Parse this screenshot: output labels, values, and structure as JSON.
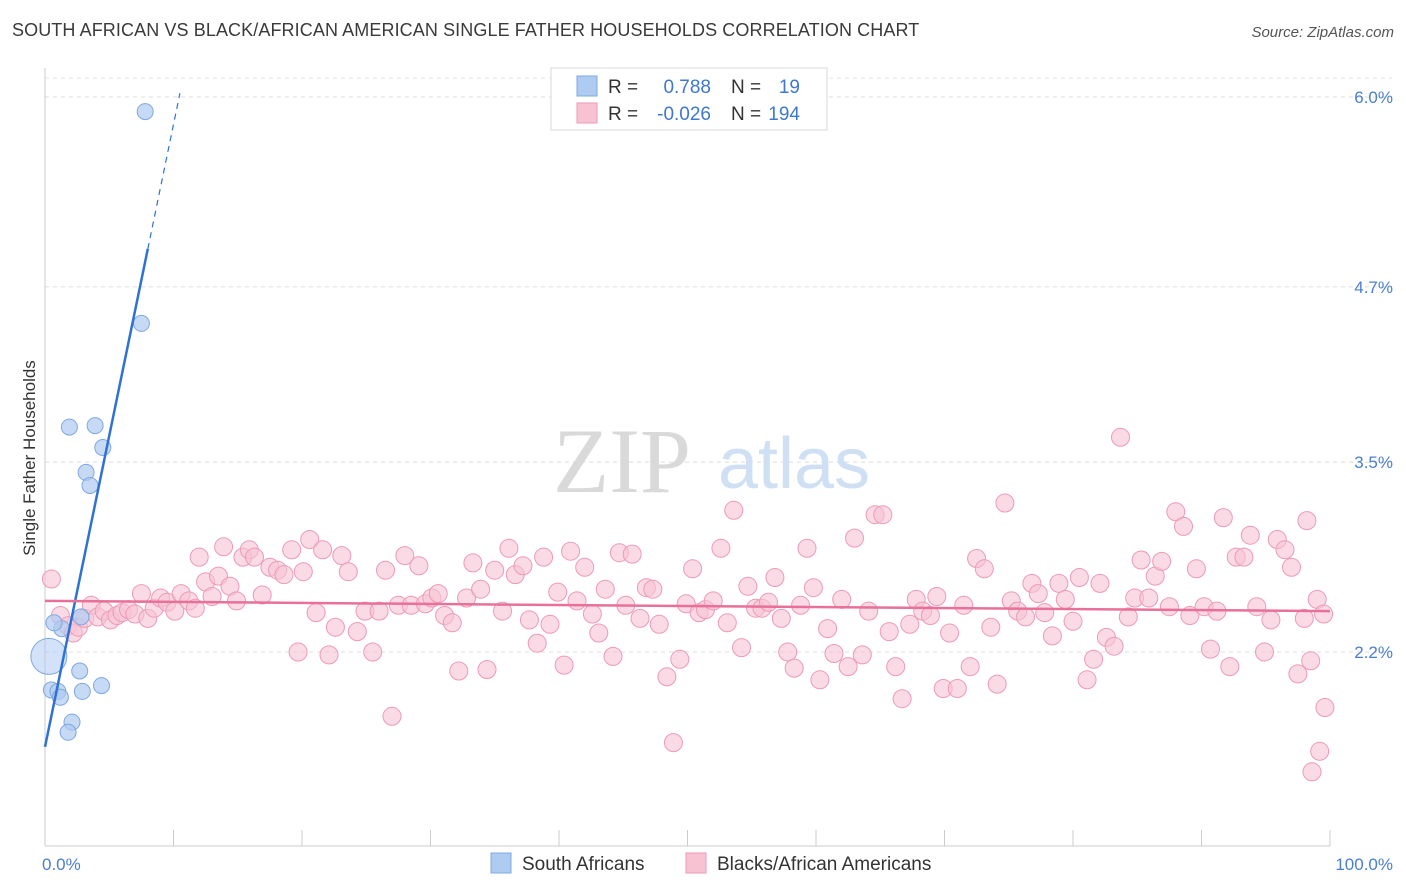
{
  "title": "SOUTH AFRICAN VS BLACK/AFRICAN AMERICAN SINGLE FATHER HOUSEHOLDS CORRELATION CHART",
  "source": "Source: ZipAtlas.com",
  "watermark": {
    "zip": "ZIP",
    "atlas": "atlas"
  },
  "colors": {
    "blue_fill": "#aecbf2",
    "blue_stroke": "#7fa8e0",
    "blue_line": "#2f72d4",
    "pink_fill": "#f7c3d3",
    "pink_stroke": "#ee9ab4",
    "pink_line": "#e8709a",
    "tick_text": "#4a7fcf",
    "grid": "#dddddd"
  },
  "legend": {
    "r_label": "R =",
    "n_label": "N =",
    "series1": {
      "r": "0.788",
      "n": "19"
    },
    "series2": {
      "r": "-0.026",
      "n": "194"
    }
  },
  "chart_data": {
    "type": "scatter",
    "title": "SOUTH AFRICAN VS BLACK/AFRICAN AMERICAN SINGLE FATHER HOUSEHOLDS CORRELATION CHART",
    "xlabel": "",
    "ylabel": "Single Father Households",
    "xlim": [
      0,
      100
    ],
    "ylim": [
      1.0,
      6.2
    ],
    "x_tick_labels": [
      "0.0%",
      "100.0%"
    ],
    "y_ticks": [
      2.2,
      3.5,
      4.7,
      6.0
    ],
    "y_tick_labels": [
      "2.2%",
      "3.5%",
      "4.7%",
      "6.0%"
    ],
    "grid": true,
    "legend_position": "top-center",
    "series": [
      {
        "name": "South Africans",
        "color": "#aecbf2",
        "r": 0.788,
        "n": 19,
        "trend": {
          "x0": 0.0,
          "y0": 1.55,
          "x1": 8.0,
          "y1": 4.96,
          "dashed_to_x": 10.5
        },
        "points": [
          [
            7.8,
            5.9
          ],
          [
            7.5,
            4.45
          ],
          [
            1.9,
            3.74
          ],
          [
            3.9,
            3.75
          ],
          [
            4.5,
            3.6
          ],
          [
            3.2,
            3.43
          ],
          [
            3.5,
            3.34
          ],
          [
            0.3,
            2.17
          ],
          [
            2.7,
            2.07
          ],
          [
            0.5,
            1.94
          ],
          [
            1.0,
            1.93
          ],
          [
            1.2,
            1.89
          ],
          [
            2.9,
            1.93
          ],
          [
            4.4,
            1.97
          ],
          [
            2.1,
            1.72
          ],
          [
            1.8,
            1.65
          ],
          [
            1.3,
            2.36
          ],
          [
            0.7,
            2.4
          ],
          [
            2.8,
            2.44
          ]
        ]
      },
      {
        "name": "Blacks/African Americans",
        "color": "#f7c3d3",
        "r": -0.026,
        "n": 194,
        "trend": {
          "x0": 0.0,
          "y0": 2.55,
          "x1": 100.0,
          "y1": 2.48
        },
        "points": [
          [
            0.5,
            2.7
          ],
          [
            1.2,
            2.45
          ],
          [
            1.8,
            2.38
          ],
          [
            2.2,
            2.33
          ],
          [
            2.6,
            2.37
          ],
          [
            3.1,
            2.43
          ],
          [
            3.6,
            2.52
          ],
          [
            4.1,
            2.44
          ],
          [
            4.6,
            2.48
          ],
          [
            5.1,
            2.42
          ],
          [
            5.6,
            2.45
          ],
          [
            6.0,
            2.47
          ],
          [
            6.5,
            2.49
          ],
          [
            7.0,
            2.46
          ],
          [
            7.5,
            2.6
          ],
          [
            8.0,
            2.43
          ],
          [
            8.5,
            2.5
          ],
          [
            9.0,
            2.57
          ],
          [
            9.5,
            2.54
          ],
          [
            10.1,
            2.48
          ],
          [
            10.6,
            2.6
          ],
          [
            11.2,
            2.55
          ],
          [
            11.7,
            2.5
          ],
          [
            12.0,
            2.85
          ],
          [
            12.5,
            2.68
          ],
          [
            13.0,
            2.58
          ],
          [
            13.5,
            2.72
          ],
          [
            13.9,
            2.92
          ],
          [
            14.4,
            2.65
          ],
          [
            14.9,
            2.55
          ],
          [
            15.4,
            2.85
          ],
          [
            15.9,
            2.9
          ],
          [
            16.3,
            2.85
          ],
          [
            16.9,
            2.59
          ],
          [
            17.5,
            2.78
          ],
          [
            18.1,
            2.76
          ],
          [
            18.6,
            2.73
          ],
          [
            19.2,
            2.9
          ],
          [
            19.7,
            2.2
          ],
          [
            20.1,
            2.75
          ],
          [
            20.6,
            2.97
          ],
          [
            21.1,
            2.47
          ],
          [
            21.6,
            2.9
          ],
          [
            22.1,
            2.18
          ],
          [
            22.6,
            2.37
          ],
          [
            23.1,
            2.86
          ],
          [
            23.6,
            2.75
          ],
          [
            24.3,
            2.34
          ],
          [
            24.9,
            2.48
          ],
          [
            25.5,
            2.2
          ],
          [
            26.0,
            2.48
          ],
          [
            26.5,
            2.76
          ],
          [
            27.0,
            1.76
          ],
          [
            27.5,
            2.52
          ],
          [
            28.0,
            2.86
          ],
          [
            28.5,
            2.52
          ],
          [
            29.1,
            2.79
          ],
          [
            29.6,
            2.53
          ],
          [
            30.1,
            2.57
          ],
          [
            30.6,
            2.6
          ],
          [
            31.1,
            2.45
          ],
          [
            31.7,
            2.4
          ],
          [
            32.2,
            2.07
          ],
          [
            32.8,
            2.57
          ],
          [
            33.3,
            2.81
          ],
          [
            33.9,
            2.63
          ],
          [
            34.4,
            2.08
          ],
          [
            35.0,
            2.76
          ],
          [
            35.6,
            2.48
          ],
          [
            36.1,
            2.91
          ],
          [
            36.6,
            2.73
          ],
          [
            37.2,
            2.79
          ],
          [
            37.7,
            2.42
          ],
          [
            38.3,
            2.26
          ],
          [
            38.8,
            2.85
          ],
          [
            39.3,
            2.39
          ],
          [
            39.9,
            2.61
          ],
          [
            40.4,
            2.11
          ],
          [
            40.9,
            2.89
          ],
          [
            41.4,
            2.55
          ],
          [
            42.0,
            2.78
          ],
          [
            42.6,
            2.46
          ],
          [
            43.1,
            2.33
          ],
          [
            43.6,
            2.63
          ],
          [
            44.2,
            2.17
          ],
          [
            44.7,
            2.88
          ],
          [
            45.2,
            2.52
          ],
          [
            45.7,
            2.87
          ],
          [
            46.3,
            2.43
          ],
          [
            46.8,
            2.64
          ],
          [
            47.3,
            2.63
          ],
          [
            47.8,
            2.39
          ],
          [
            48.4,
            2.03
          ],
          [
            48.9,
            1.58
          ],
          [
            49.4,
            2.15
          ],
          [
            49.9,
            2.53
          ],
          [
            50.4,
            2.77
          ],
          [
            50.9,
            2.47
          ],
          [
            51.4,
            2.49
          ],
          [
            52.0,
            2.55
          ],
          [
            52.6,
            2.91
          ],
          [
            53.1,
            2.4
          ],
          [
            53.6,
            3.17
          ],
          [
            54.2,
            2.23
          ],
          [
            54.7,
            2.65
          ],
          [
            55.3,
            2.5
          ],
          [
            55.8,
            2.5
          ],
          [
            56.3,
            2.54
          ],
          [
            56.8,
            2.71
          ],
          [
            57.3,
            2.43
          ],
          [
            57.8,
            2.2
          ],
          [
            58.3,
            2.09
          ],
          [
            58.8,
            2.52
          ],
          [
            59.3,
            2.91
          ],
          [
            59.8,
            2.64
          ],
          [
            60.3,
            2.01
          ],
          [
            60.9,
            2.36
          ],
          [
            61.4,
            2.19
          ],
          [
            62.0,
            2.56
          ],
          [
            62.5,
            2.1
          ],
          [
            63.0,
            2.98
          ],
          [
            63.6,
            2.18
          ],
          [
            64.1,
            2.48
          ],
          [
            64.6,
            3.14
          ],
          [
            65.2,
            3.14
          ],
          [
            65.7,
            2.34
          ],
          [
            66.2,
            2.1
          ],
          [
            66.7,
            1.88
          ],
          [
            67.3,
            2.39
          ],
          [
            67.8,
            2.56
          ],
          [
            68.3,
            2.48
          ],
          [
            68.9,
            2.45
          ],
          [
            69.4,
            2.58
          ],
          [
            69.9,
            1.95
          ],
          [
            70.4,
            2.33
          ],
          [
            71.0,
            1.95
          ],
          [
            71.5,
            2.52
          ],
          [
            72.0,
            2.1
          ],
          [
            72.5,
            2.84
          ],
          [
            73.1,
            2.77
          ],
          [
            73.6,
            2.37
          ],
          [
            74.1,
            1.98
          ],
          [
            74.7,
            3.22
          ],
          [
            75.2,
            2.55
          ],
          [
            75.7,
            2.48
          ],
          [
            76.3,
            2.44
          ],
          [
            76.8,
            2.67
          ],
          [
            77.3,
            2.6
          ],
          [
            77.8,
            2.47
          ],
          [
            78.4,
            2.31
          ],
          [
            78.9,
            2.67
          ],
          [
            79.4,
            2.56
          ],
          [
            80.0,
            2.41
          ],
          [
            80.5,
            2.71
          ],
          [
            81.1,
            2.01
          ],
          [
            81.6,
            2.15
          ],
          [
            82.1,
            2.67
          ],
          [
            82.6,
            2.3
          ],
          [
            83.2,
            2.24
          ],
          [
            83.7,
            3.67
          ],
          [
            84.3,
            2.44
          ],
          [
            84.8,
            2.57
          ],
          [
            85.3,
            2.83
          ],
          [
            85.9,
            2.57
          ],
          [
            86.4,
            2.72
          ],
          [
            86.9,
            2.82
          ],
          [
            87.5,
            2.51
          ],
          [
            88.0,
            3.16
          ],
          [
            88.6,
            3.06
          ],
          [
            89.1,
            2.45
          ],
          [
            89.6,
            2.77
          ],
          [
            90.2,
            2.51
          ],
          [
            90.7,
            2.22
          ],
          [
            91.2,
            2.48
          ],
          [
            91.7,
            3.12
          ],
          [
            92.2,
            2.1
          ],
          [
            92.7,
            2.85
          ],
          [
            93.3,
            2.85
          ],
          [
            93.8,
            3.0
          ],
          [
            94.3,
            2.51
          ],
          [
            94.9,
            2.2
          ],
          [
            95.4,
            2.42
          ],
          [
            95.9,
            2.97
          ],
          [
            96.5,
            2.9
          ],
          [
            97.0,
            2.78
          ],
          [
            97.5,
            2.05
          ],
          [
            98.0,
            2.43
          ],
          [
            98.5,
            2.14
          ],
          [
            99.0,
            2.56
          ],
          [
            99.5,
            2.46
          ],
          [
            98.2,
            3.1
          ],
          [
            99.6,
            1.82
          ],
          [
            98.6,
            1.38
          ],
          [
            99.2,
            1.52
          ]
        ]
      }
    ]
  },
  "bottom_legend": {
    "series1": "South Africans",
    "series2": "Blacks/African Americans"
  }
}
